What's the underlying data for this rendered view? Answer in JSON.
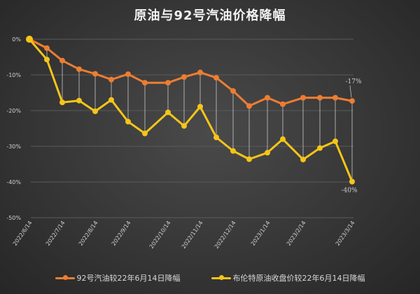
{
  "title": "原油与92号汽油价格降幅",
  "colors": {
    "gasoline": "#ed7d31",
    "brent": "#f5c518",
    "drop_line": "#bfbfbf",
    "grid": "#5a5a5a",
    "axis_text": "#d0d0d0"
  },
  "legend": {
    "gasoline_label": "92号汽油较22年6月14日降幅",
    "brent_label": "布伦特原油收盘价较22年6月14日降幅"
  },
  "annotations": {
    "gasoline_end": "-17%",
    "brent_end": "-40%"
  },
  "chart_data": {
    "type": "line",
    "title": "原油与92号汽油价格降幅",
    "xlabel": "",
    "ylabel": "",
    "ylim": [
      -50,
      0
    ],
    "yticks": [
      0,
      -10,
      -20,
      -30,
      -40,
      -50
    ],
    "ytick_labels": [
      "0%",
      "-10%",
      "-20%",
      "-30%",
      "-40%",
      "-50%"
    ],
    "x_tick_labels": [
      "2022/6/14",
      "2022/7/14",
      "2022/8/14",
      "2022/9/14",
      "2022/10/14",
      "2022/11/14",
      "2022/12/14",
      "2023/1/14",
      "2023/2/14",
      "2023/3/14"
    ],
    "x_tick_point_index": [
      0,
      2,
      4,
      6,
      8,
      10,
      12,
      14,
      16,
      19
    ],
    "grid": true,
    "legend_position": "bottom",
    "drop_lines": true,
    "series": [
      {
        "name": "92号汽油较22年6月14日降幅",
        "color": "#ed7d31",
        "values": [
          0,
          -2.5,
          -6.0,
          -8.4,
          -9.7,
          -11.3,
          -9.8,
          -12.2,
          -12.2,
          -10.6,
          -9.3,
          -10.8,
          -14.5,
          -18.7,
          -16.4,
          -18.2,
          -16.4,
          -16.4,
          -16.4,
          -17.3
        ]
      },
      {
        "name": "布伦特原油收盘价较22年6月14日降幅",
        "color": "#f5c518",
        "values": [
          0,
          -5.7,
          -17.7,
          -17.2,
          -20.2,
          -17.0,
          -23.1,
          -26.4,
          -20.5,
          -24.3,
          -18.9,
          -27.5,
          -31.3,
          -33.6,
          -31.8,
          -28.0,
          -33.7,
          -30.5,
          -28.6,
          -39.9
        ]
      }
    ],
    "data_labels": [
      {
        "series": 0,
        "index": 19,
        "text": "-17%"
      },
      {
        "series": 1,
        "index": 19,
        "text": "-40%"
      }
    ]
  }
}
